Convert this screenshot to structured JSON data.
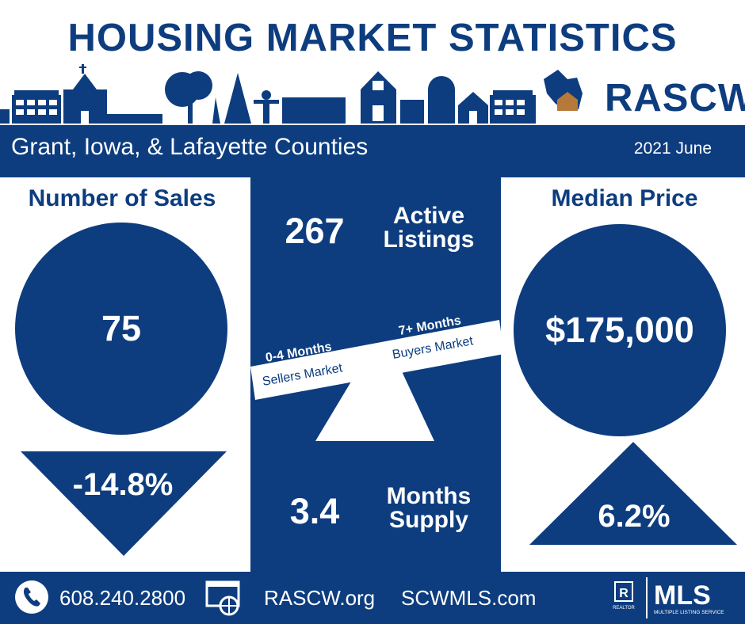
{
  "header": {
    "title": "HOUSING MARKET STATISTICS",
    "brand": "RASCW"
  },
  "region": {
    "counties": "Grant, Iowa, & Lafayette Counties",
    "date": "2021 June"
  },
  "sales": {
    "heading": "Number of Sales",
    "value": "75",
    "change": "-14.8%"
  },
  "median": {
    "heading": "Median Price",
    "value": "$175,000",
    "change": "6.2%"
  },
  "active": {
    "value": "267",
    "label_line1": "Active",
    "label_line2": "Listings"
  },
  "supply": {
    "value": "3.4",
    "label_line1": "Months",
    "label_line2": "Supply",
    "sellers_range": "0-4 Months",
    "sellers_label": "Sellers Market",
    "buyers_range": "7+ Months",
    "buyers_label": "Buyers Market"
  },
  "footer": {
    "phone": "608.240.2800",
    "site1": "RASCW.org",
    "site2": "SCWMLS.com",
    "mls_logo": "MLS",
    "mls_tagline": "MULTIPLE LISTING SERVICE",
    "realtor_mark": "R",
    "realtor_caption": "REALTOR"
  },
  "colors": {
    "navy": "#0d3d7f",
    "white": "#ffffff",
    "brown": "#b5793a"
  }
}
